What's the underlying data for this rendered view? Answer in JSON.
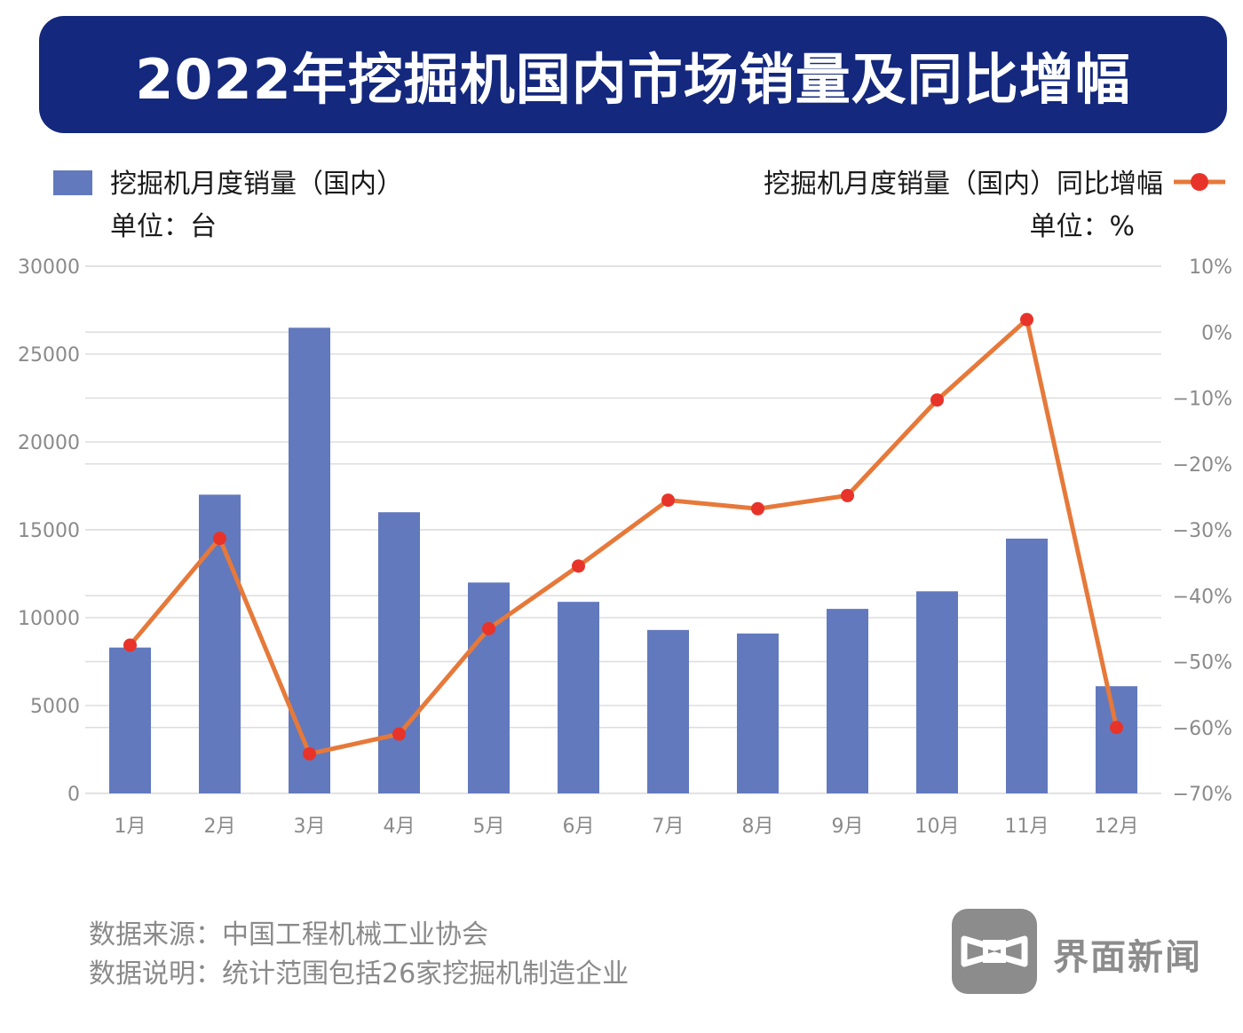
{
  "header": {
    "title": "2022年挖掘机国内市场销量及同比增幅"
  },
  "legend": {
    "bar_label": "挖掘机月度销量（国内）",
    "bar_unit": "单位：台",
    "line_label": "挖掘机月度销量（国内）同比增幅",
    "line_unit": "单位：%"
  },
  "footer": {
    "source": "数据来源：中国工程机械工业协会",
    "note": "数据说明：统计范围包括26家挖掘机制造企业"
  },
  "logo": {
    "name": "界面新闻",
    "icon": "jiemian-logo-icon"
  },
  "colors": {
    "banner": "#14287d",
    "bar": "#6279bd",
    "line": "#e6793a",
    "marker": "#e8332a",
    "grid": "#dddddd"
  },
  "chart_data": {
    "type": "bar+line",
    "title": "2022年挖掘机国内市场销量及同比增幅",
    "categories": [
      "1月",
      "2月",
      "3月",
      "4月",
      "5月",
      "6月",
      "7月",
      "8月",
      "9月",
      "10月",
      "11月",
      "12月"
    ],
    "series": [
      {
        "name": "挖掘机月度销量（国内）",
        "type": "bar",
        "axis": "left",
        "unit": "台",
        "values": [
          8300,
          17000,
          26500,
          16000,
          12000,
          10900,
          9300,
          9100,
          10500,
          11500,
          14500,
          6100
        ]
      },
      {
        "name": "挖掘机月度销量（国内）同比增幅",
        "type": "line",
        "axis": "right",
        "unit": "%",
        "values": [
          -47.5,
          -31.3,
          -64.0,
          -61.0,
          -45.0,
          -35.5,
          -25.5,
          -26.8,
          -24.8,
          -10.3,
          1.9,
          -60.0
        ]
      }
    ],
    "y_left": {
      "min": 0,
      "max": 30000,
      "ticks": [
        0,
        5000,
        10000,
        15000,
        20000,
        25000,
        30000
      ],
      "tick_labels": [
        "0",
        "5000",
        "10000",
        "15000",
        "20000",
        "25000",
        "30000"
      ]
    },
    "y_right": {
      "min": -70,
      "max": 10,
      "ticks": [
        -70,
        -60,
        -50,
        -40,
        -30,
        -20,
        -10,
        0,
        10
      ],
      "tick_labels": [
        "−70%",
        "−60%",
        "−50%",
        "−40%",
        "−30%",
        "−20%",
        "−10%",
        "0%",
        "10%"
      ]
    },
    "grid": true
  }
}
